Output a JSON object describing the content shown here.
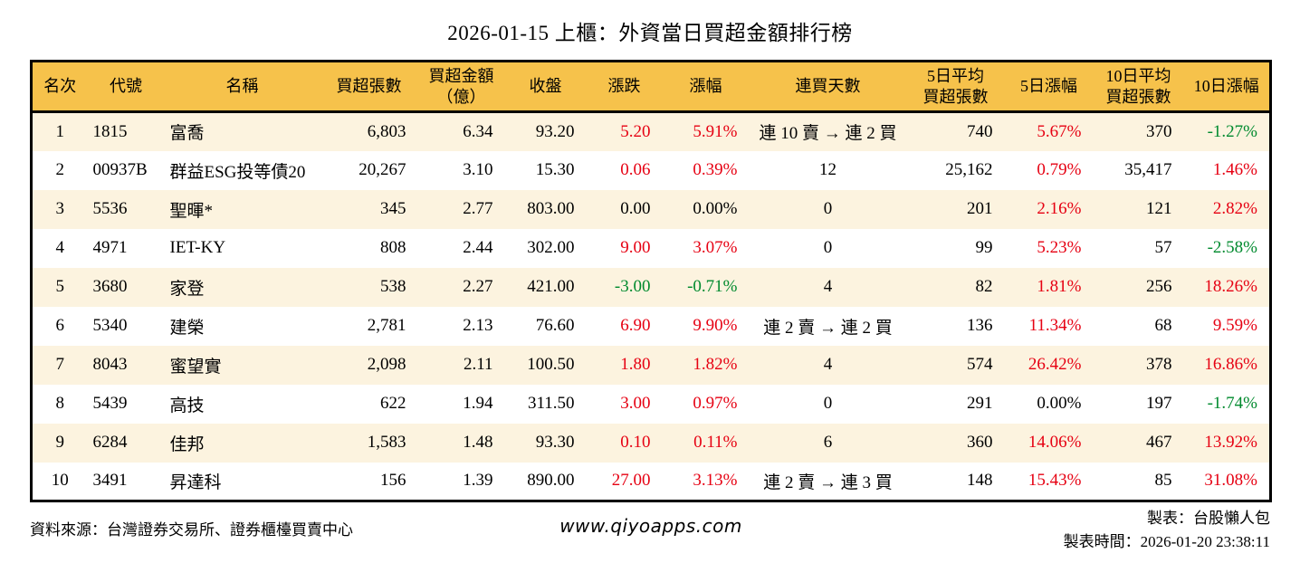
{
  "title": "2026-01-15 上櫃：外資當日買超金額排行榜",
  "table": {
    "headers": [
      {
        "label": "名次"
      },
      {
        "label": "代號"
      },
      {
        "label": "名稱"
      },
      {
        "label": "買超張數"
      },
      {
        "label": "買超金額\n（億）"
      },
      {
        "label": "收盤"
      },
      {
        "label": "漲跌"
      },
      {
        "label": "漲幅"
      },
      {
        "label": "連買天數"
      },
      {
        "label": "5日平均\n買超張數"
      },
      {
        "label": "5日漲幅"
      },
      {
        "label": "10日平均\n買超張數"
      },
      {
        "label": "10日漲幅"
      }
    ],
    "rows": [
      {
        "cells": [
          {
            "text": "1"
          },
          {
            "text": "1815"
          },
          {
            "text": "富喬"
          },
          {
            "text": "6,803"
          },
          {
            "text": "6.34"
          },
          {
            "text": "93.20"
          },
          {
            "text": "5.20",
            "color": "up"
          },
          {
            "text": "5.91%",
            "color": "up"
          },
          {
            "text": "連 10 賣 → 連 2 買"
          },
          {
            "text": "740"
          },
          {
            "text": "5.67%",
            "color": "up"
          },
          {
            "text": "370"
          },
          {
            "text": "-1.27%",
            "color": "down"
          }
        ]
      },
      {
        "cells": [
          {
            "text": "2"
          },
          {
            "text": "00937B"
          },
          {
            "text": "群益ESG投等債20"
          },
          {
            "text": "20,267"
          },
          {
            "text": "3.10"
          },
          {
            "text": "15.30"
          },
          {
            "text": "0.06",
            "color": "up"
          },
          {
            "text": "0.39%",
            "color": "up"
          },
          {
            "text": "12"
          },
          {
            "text": "25,162"
          },
          {
            "text": "0.79%",
            "color": "up"
          },
          {
            "text": "35,417"
          },
          {
            "text": "1.46%",
            "color": "up"
          }
        ]
      },
      {
        "cells": [
          {
            "text": "3"
          },
          {
            "text": "5536"
          },
          {
            "text": "聖暉*"
          },
          {
            "text": "345"
          },
          {
            "text": "2.77"
          },
          {
            "text": "803.00"
          },
          {
            "text": "0.00"
          },
          {
            "text": "0.00%"
          },
          {
            "text": "0"
          },
          {
            "text": "201"
          },
          {
            "text": "2.16%",
            "color": "up"
          },
          {
            "text": "121"
          },
          {
            "text": "2.82%",
            "color": "up"
          }
        ]
      },
      {
        "cells": [
          {
            "text": "4"
          },
          {
            "text": "4971"
          },
          {
            "text": "IET-KY"
          },
          {
            "text": "808"
          },
          {
            "text": "2.44"
          },
          {
            "text": "302.00"
          },
          {
            "text": "9.00",
            "color": "up"
          },
          {
            "text": "3.07%",
            "color": "up"
          },
          {
            "text": "0"
          },
          {
            "text": "99"
          },
          {
            "text": "5.23%",
            "color": "up"
          },
          {
            "text": "57"
          },
          {
            "text": "-2.58%",
            "color": "down"
          }
        ]
      },
      {
        "cells": [
          {
            "text": "5"
          },
          {
            "text": "3680"
          },
          {
            "text": "家登"
          },
          {
            "text": "538"
          },
          {
            "text": "2.27"
          },
          {
            "text": "421.00"
          },
          {
            "text": "-3.00",
            "color": "down"
          },
          {
            "text": "-0.71%",
            "color": "down"
          },
          {
            "text": "4"
          },
          {
            "text": "82"
          },
          {
            "text": "1.81%",
            "color": "up"
          },
          {
            "text": "256"
          },
          {
            "text": "18.26%",
            "color": "up"
          }
        ]
      },
      {
        "cells": [
          {
            "text": "6"
          },
          {
            "text": "5340"
          },
          {
            "text": "建榮"
          },
          {
            "text": "2,781"
          },
          {
            "text": "2.13"
          },
          {
            "text": "76.60"
          },
          {
            "text": "6.90",
            "color": "up"
          },
          {
            "text": "9.90%",
            "color": "up"
          },
          {
            "text": "連 2 賣 → 連 2 買"
          },
          {
            "text": "136"
          },
          {
            "text": "11.34%",
            "color": "up"
          },
          {
            "text": "68"
          },
          {
            "text": "9.59%",
            "color": "up"
          }
        ]
      },
      {
        "cells": [
          {
            "text": "7"
          },
          {
            "text": "8043"
          },
          {
            "text": "蜜望實"
          },
          {
            "text": "2,098"
          },
          {
            "text": "2.11"
          },
          {
            "text": "100.50"
          },
          {
            "text": "1.80",
            "color": "up"
          },
          {
            "text": "1.82%",
            "color": "up"
          },
          {
            "text": "4"
          },
          {
            "text": "574"
          },
          {
            "text": "26.42%",
            "color": "up"
          },
          {
            "text": "378"
          },
          {
            "text": "16.86%",
            "color": "up"
          }
        ]
      },
      {
        "cells": [
          {
            "text": "8"
          },
          {
            "text": "5439"
          },
          {
            "text": "高技"
          },
          {
            "text": "622"
          },
          {
            "text": "1.94"
          },
          {
            "text": "311.50"
          },
          {
            "text": "3.00",
            "color": "up"
          },
          {
            "text": "0.97%",
            "color": "up"
          },
          {
            "text": "0"
          },
          {
            "text": "291"
          },
          {
            "text": "0.00%"
          },
          {
            "text": "197"
          },
          {
            "text": "-1.74%",
            "color": "down"
          }
        ]
      },
      {
        "cells": [
          {
            "text": "9"
          },
          {
            "text": "6284"
          },
          {
            "text": "佳邦"
          },
          {
            "text": "1,583"
          },
          {
            "text": "1.48"
          },
          {
            "text": "93.30"
          },
          {
            "text": "0.10",
            "color": "up"
          },
          {
            "text": "0.11%",
            "color": "up"
          },
          {
            "text": "6"
          },
          {
            "text": "360"
          },
          {
            "text": "14.06%",
            "color": "up"
          },
          {
            "text": "467"
          },
          {
            "text": "13.92%",
            "color": "up"
          }
        ]
      },
      {
        "cells": [
          {
            "text": "10"
          },
          {
            "text": "3491"
          },
          {
            "text": "昇達科"
          },
          {
            "text": "156"
          },
          {
            "text": "1.39"
          },
          {
            "text": "890.00"
          },
          {
            "text": "27.00",
            "color": "up"
          },
          {
            "text": "3.13%",
            "color": "up"
          },
          {
            "text": "連 2 賣 → 連 3 買"
          },
          {
            "text": "148"
          },
          {
            "text": "15.43%",
            "color": "up"
          },
          {
            "text": "85"
          },
          {
            "text": "31.08%",
            "color": "up"
          }
        ]
      }
    ]
  },
  "footer": {
    "source": "資料來源：台灣證券交易所、證券櫃檯買賣中心",
    "website": "www.qiyoapps.com",
    "maker": "製表：台股懶人包",
    "timestamp": "製表時間：2026-01-20 23:38:11"
  },
  "colors": {
    "up": "#e60012",
    "down": "#008a2e",
    "header_bg": "#f6c24b",
    "row_alt_bg": "#fcf3df",
    "border": "#000000"
  }
}
